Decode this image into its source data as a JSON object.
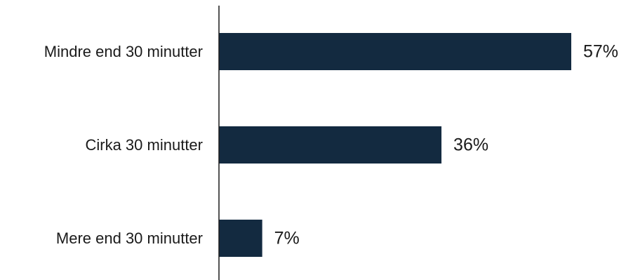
{
  "chart_data": {
    "type": "bar",
    "orientation": "horizontal",
    "categories": [
      "Mindre end 30 minutter",
      "Cirka 30 minutter",
      "Mere end 30 minutter"
    ],
    "values": [
      57,
      36,
      7
    ],
    "value_labels": [
      "57%",
      "36%",
      "7%"
    ],
    "unit": "%",
    "title": "",
    "xlabel": "",
    "ylabel": "",
    "xlim": [
      0,
      57
    ],
    "grid": false,
    "legend": "none",
    "bar_color": "#132a40"
  }
}
